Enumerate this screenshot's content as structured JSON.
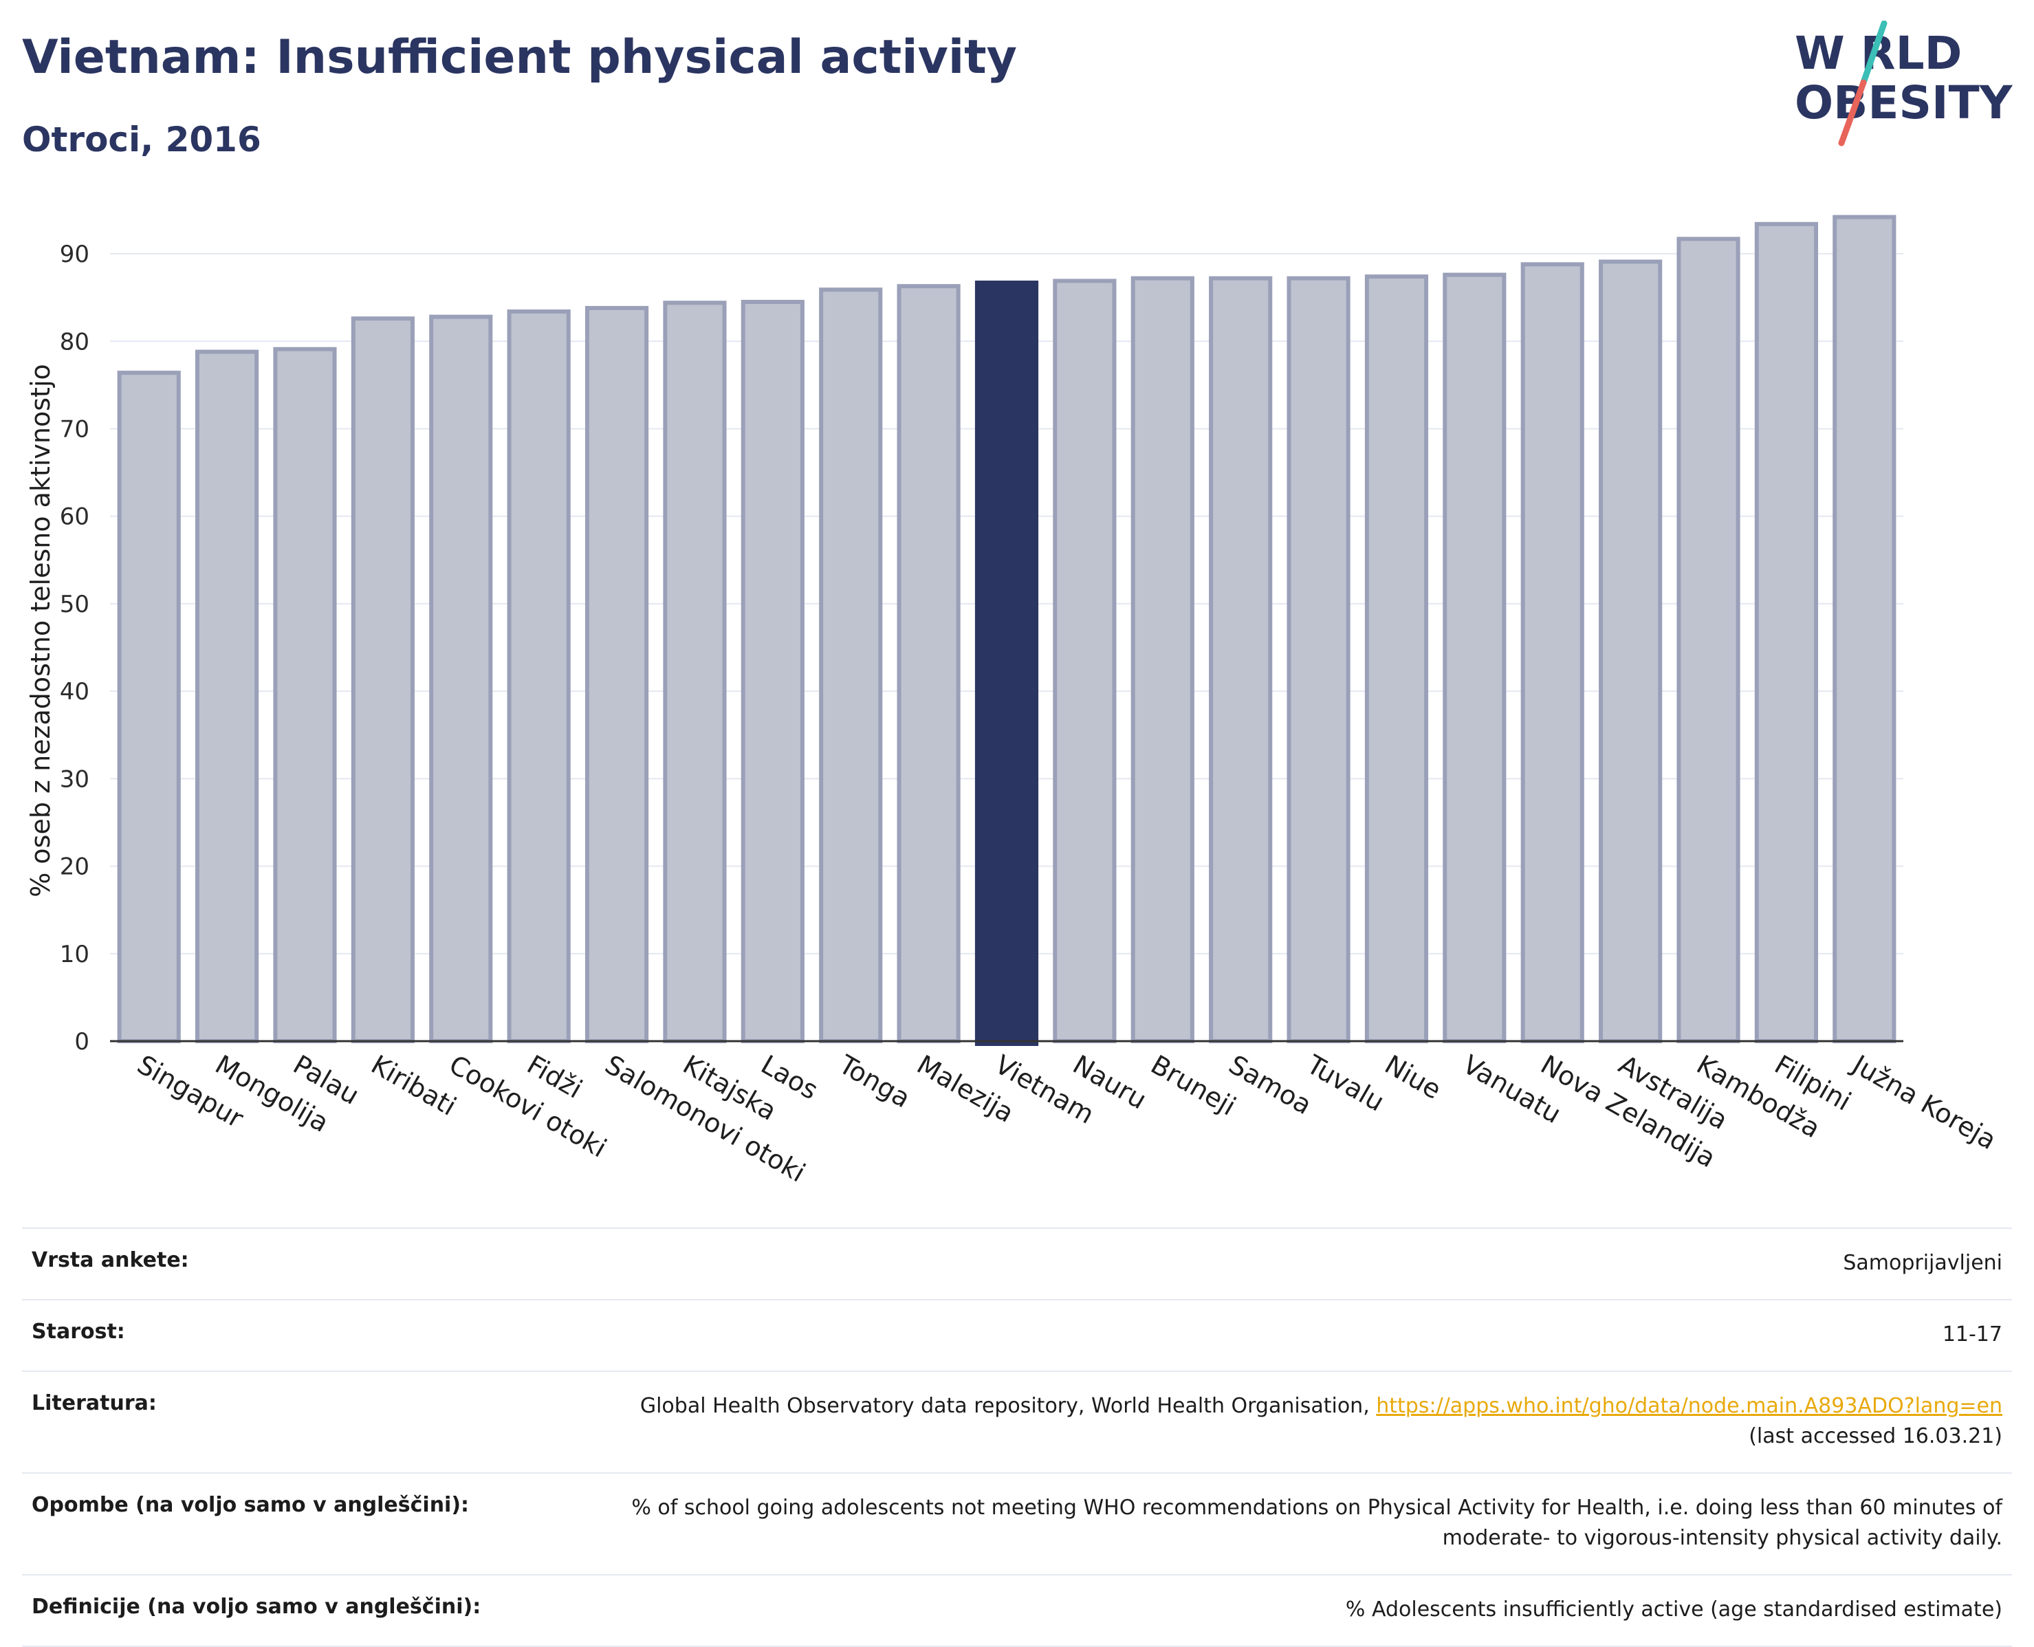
{
  "header": {
    "title": "Vietnam: Insufficient physical activity",
    "subtitle": "Otroci, 2016"
  },
  "logo": {
    "line1": "W RLD",
    "line2": "OBESITY",
    "colors": {
      "text": "#2b3561",
      "slash_top": "#3bbfb6",
      "slash_bottom": "#e8645a"
    }
  },
  "chart_data": {
    "type": "bar",
    "title": "",
    "xlabel": "",
    "ylabel": "% oseb z nezadostno telesno aktivnostjo",
    "ylim": [
      0,
      97
    ],
    "yticks": [
      0,
      10,
      20,
      30,
      40,
      50,
      60,
      70,
      80,
      90
    ],
    "grid": true,
    "highlight": "Vietnam",
    "colors": {
      "bar": "#bfc3d0",
      "bar_edge": "#9aa0b8",
      "highlight": "#2b3561"
    },
    "categories": [
      "Singapur",
      "Mongolija",
      "Palau",
      "Kiribati",
      "Cookovi otoki",
      "Fidži",
      "Salomonovi otoki",
      "Kitajska",
      "Laos",
      "Tonga",
      "Malezija",
      "Vietnam",
      "Nauru",
      "Bruneji",
      "Samoa",
      "Tuvalu",
      "Niue",
      "Vanuatu",
      "Nova Zelandija",
      "Avstralija",
      "Kambodža",
      "Filipini",
      "Južna Koreja"
    ],
    "values": [
      76.4,
      78.8,
      79.1,
      82.6,
      82.8,
      83.4,
      83.8,
      84.4,
      84.5,
      85.9,
      86.3,
      86.7,
      86.9,
      87.2,
      87.2,
      87.2,
      87.4,
      87.6,
      88.8,
      89.1,
      91.7,
      93.4,
      94.2
    ]
  },
  "info": {
    "survey_label": "Vrsta ankete:",
    "survey_value": "Samoprijavljeni",
    "age_label": "Starost:",
    "age_value": "11-17",
    "lit_label": "Literatura:",
    "lit_text": "Global Health Observatory data repository, World Health Organisation, ",
    "lit_link": "https://apps.who.int/gho/data/node.main.A893ADO?lang=en",
    "lit_accessed": "(last accessed 16.03.21)",
    "notes_label": "Opombe (na voljo samo v angleščini):",
    "notes_value": "% of school going adolescents not meeting WHO recommendations on Physical Activity for Health, i.e. doing less than 60 minutes of moderate- to vigorous-intensity physical activity daily.",
    "def_label": "Definicije (na voljo samo v angleščini):",
    "def_value": "% Adolescents insufficiently active (age standardised estimate)"
  }
}
